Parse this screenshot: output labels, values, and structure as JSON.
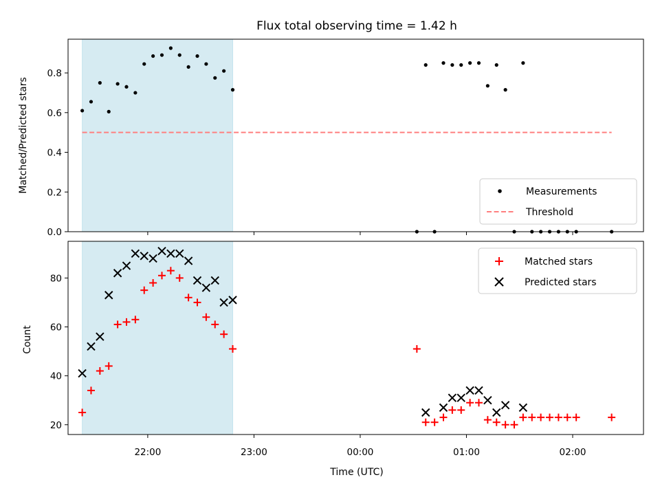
{
  "chart_data": [
    {
      "type": "scatter",
      "title": "Flux total observing time = 1.42 h",
      "ylabel": "Matched/Predicted stars",
      "xlabel": "",
      "xlim": [
        "21:15",
        "02:40"
      ],
      "ylim": [
        0,
        0.97
      ],
      "yticks": [
        "0.0",
        "0.2",
        "0.4",
        "0.6",
        "0.8"
      ],
      "ytick_values": [
        0,
        0.2,
        0.4,
        0.6,
        0.8
      ],
      "xtick_values": [
        "22:00",
        "23:00",
        "00:00",
        "01:00",
        "02:00"
      ],
      "grid": false,
      "legend": "lower-right",
      "shaded_span": [
        "21:23",
        "22:48"
      ],
      "series": [
        {
          "name": "Measurements",
          "marker": "dot",
          "color": "#000000",
          "points": [
            [
              "21:23",
              0.61
            ],
            [
              "21:28",
              0.655
            ],
            [
              "21:33",
              0.75
            ],
            [
              "21:38",
              0.605
            ],
            [
              "21:43",
              0.745
            ],
            [
              "21:48",
              0.73
            ],
            [
              "21:53",
              0.7
            ],
            [
              "21:58",
              0.845
            ],
            [
              "22:03",
              0.885
            ],
            [
              "22:08",
              0.89
            ],
            [
              "22:13",
              0.925
            ],
            [
              "22:18",
              0.89
            ],
            [
              "22:23",
              0.83
            ],
            [
              "22:28",
              0.885
            ],
            [
              "22:33",
              0.845
            ],
            [
              "22:38",
              0.775
            ],
            [
              "22:43",
              0.81
            ],
            [
              "22:48",
              0.715
            ],
            [
              "00:32",
              0.0
            ],
            [
              "00:37",
              0.84
            ],
            [
              "00:42",
              0.0
            ],
            [
              "00:47",
              0.85
            ],
            [
              "00:52",
              0.84
            ],
            [
              "00:57",
              0.84
            ],
            [
              "01:02",
              0.85
            ],
            [
              "01:07",
              0.85
            ],
            [
              "01:12",
              0.735
            ],
            [
              "01:17",
              0.84
            ],
            [
              "01:22",
              0.715
            ],
            [
              "01:27",
              0.0
            ],
            [
              "01:32",
              0.85
            ],
            [
              "01:37",
              0.0
            ],
            [
              "01:42",
              0.0
            ],
            [
              "01:47",
              0.0
            ],
            [
              "01:52",
              0.0
            ],
            [
              "01:57",
              0.0
            ],
            [
              "02:02",
              0.0
            ],
            [
              "02:22",
              0.0
            ]
          ]
        },
        {
          "name": "Threshold",
          "type": "line",
          "style": "dashed",
          "color": "#ff7f7f",
          "points": [
            [
              "21:23",
              0.5
            ],
            [
              "02:22",
              0.5
            ]
          ]
        }
      ]
    },
    {
      "type": "scatter",
      "title": "",
      "ylabel": "Count",
      "xlabel": "Time (UTC)",
      "xlim": [
        "21:15",
        "02:40"
      ],
      "ylim": [
        16,
        95
      ],
      "yticks": [
        "20",
        "40",
        "60",
        "80"
      ],
      "ytick_values": [
        20,
        40,
        60,
        80
      ],
      "xticks": [
        "22:00",
        "23:00",
        "00:00",
        "01:00",
        "02:00"
      ],
      "xtick_values": [
        "22:00",
        "23:00",
        "00:00",
        "01:00",
        "02:00"
      ],
      "grid": false,
      "legend": "upper-right",
      "shaded_span": [
        "21:23",
        "22:48"
      ],
      "series": [
        {
          "name": "Matched stars",
          "marker": "plus",
          "color": "#ff0000",
          "points": [
            [
              "21:23",
              25
            ],
            [
              "21:28",
              34
            ],
            [
              "21:33",
              42
            ],
            [
              "21:38",
              44
            ],
            [
              "21:43",
              61
            ],
            [
              "21:48",
              62
            ],
            [
              "21:53",
              63
            ],
            [
              "21:58",
              75
            ],
            [
              "22:03",
              78
            ],
            [
              "22:08",
              81
            ],
            [
              "22:13",
              83
            ],
            [
              "22:18",
              80
            ],
            [
              "22:23",
              72
            ],
            [
              "22:28",
              70
            ],
            [
              "22:33",
              64
            ],
            [
              "22:38",
              61
            ],
            [
              "22:43",
              57
            ],
            [
              "22:48",
              51
            ],
            [
              "00:32",
              51
            ],
            [
              "00:37",
              21
            ],
            [
              "00:42",
              21
            ],
            [
              "00:47",
              23
            ],
            [
              "00:52",
              26
            ],
            [
              "00:57",
              26
            ],
            [
              "01:02",
              29
            ],
            [
              "01:07",
              29
            ],
            [
              "01:12",
              22
            ],
            [
              "01:17",
              21
            ],
            [
              "01:22",
              20
            ],
            [
              "01:27",
              20
            ],
            [
              "01:32",
              23
            ],
            [
              "01:37",
              23
            ],
            [
              "01:42",
              23
            ],
            [
              "01:47",
              23
            ],
            [
              "01:52",
              23
            ],
            [
              "01:57",
              23
            ],
            [
              "02:02",
              23
            ],
            [
              "02:22",
              23
            ]
          ]
        },
        {
          "name": "Predicted stars",
          "marker": "x",
          "color": "#000000",
          "points": [
            [
              "21:23",
              41
            ],
            [
              "21:28",
              52
            ],
            [
              "21:33",
              56
            ],
            [
              "21:38",
              73
            ],
            [
              "21:43",
              82
            ],
            [
              "21:48",
              85
            ],
            [
              "21:53",
              90
            ],
            [
              "21:58",
              89
            ],
            [
              "22:03",
              88
            ],
            [
              "22:08",
              91
            ],
            [
              "22:13",
              90
            ],
            [
              "22:18",
              90
            ],
            [
              "22:23",
              87
            ],
            [
              "22:28",
              79
            ],
            [
              "22:33",
              76
            ],
            [
              "22:38",
              79
            ],
            [
              "22:43",
              70
            ],
            [
              "22:48",
              71
            ],
            [
              "00:37",
              25
            ],
            [
              "00:47",
              27
            ],
            [
              "00:52",
              31
            ],
            [
              "00:57",
              31
            ],
            [
              "01:02",
              34
            ],
            [
              "01:07",
              34
            ],
            [
              "01:12",
              30
            ],
            [
              "01:17",
              25
            ],
            [
              "01:22",
              28
            ],
            [
              "01:32",
              27
            ]
          ]
        }
      ]
    }
  ]
}
